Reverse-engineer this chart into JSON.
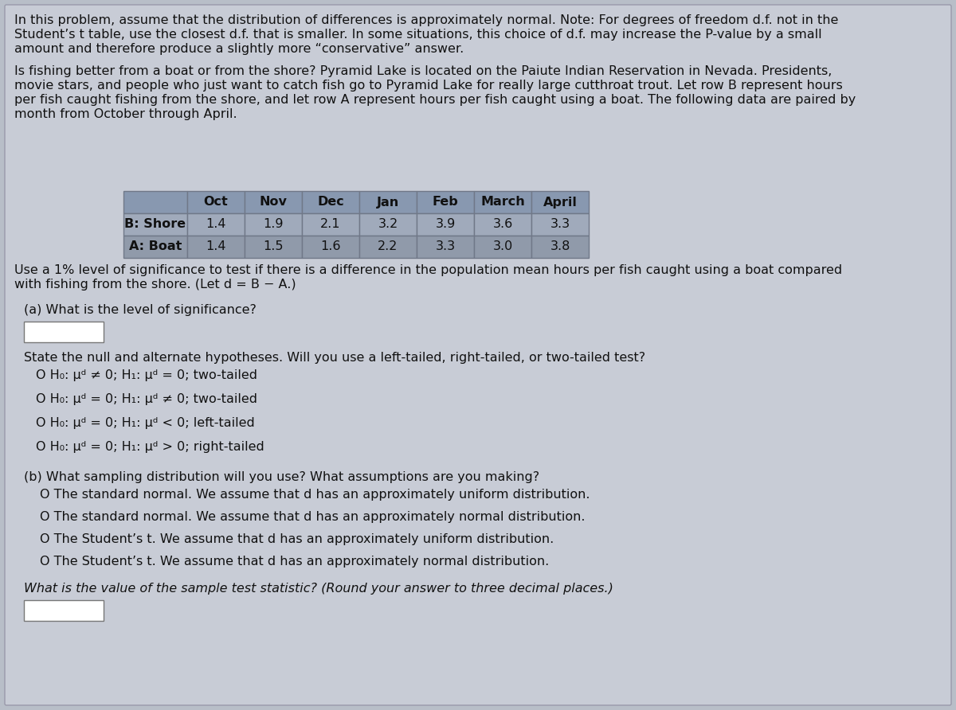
{
  "bg_color": "#b8bec8",
  "panel_color": "#c8ccd6",
  "text_color": "#111111",
  "table_header_bg": "#8898b0",
  "table_row1_bg": "#a0aabb",
  "table_row2_bg": "#909aaa",
  "table_border_color": "#707888",
  "intro_text_line1": "In this problem, assume that the distribution of differences is approximately normal. Note: For degrees of freedom d.f. not in the",
  "intro_text_line2": "Student’s t table, use the closest d.f. that is smaller. In some situations, this choice of d.f. may increase the P-value by a small",
  "intro_text_line3": "amount and therefore produce a slightly more “conservative” answer.",
  "problem_line1": "Is fishing better from a boat or from the shore? Pyramid Lake is located on the Paiute Indian Reservation in Nevada. Presidents,",
  "problem_line2": "movie stars, and people who just want to catch fish go to Pyramid Lake for really large cutthroat trout. Let row B represent hours",
  "problem_line3": "per fish caught fishing from the shore, and let row A represent hours per fish caught using a boat. The following data are paired by",
  "problem_line4": "month from October through April.",
  "table_headers": [
    "Oct",
    "Nov",
    "Dec",
    "Jan",
    "Feb",
    "March",
    "April"
  ],
  "table_row1_label": "B: Shore",
  "table_row1_values": [
    "1.4",
    "1.9",
    "2.1",
    "3.2",
    "3.9",
    "3.6",
    "3.3"
  ],
  "table_row2_label": "A: Boat",
  "table_row2_values": [
    "1.4",
    "1.5",
    "1.6",
    "2.2",
    "3.3",
    "3.0",
    "3.8"
  ],
  "sig_line1": "Use a 1% level of significance to test if there is a difference in the population mean hours per fish caught using a boat compared",
  "sig_line2": "with fishing from the shore. (Let d = B − A.)",
  "part_a_label": "(a) What is the level of significance?",
  "state_text": "State the null and alternate hypotheses. Will you use a left-tailed, right-tailed, or two-tailed test?",
  "hyp1": "O H₀: μᵈ ≠ 0; H₁: μᵈ = 0; two-tailed",
  "hyp2": "O H₀: μᵈ = 0; H₁: μᵈ ≠ 0; two-tailed",
  "hyp3": "O H₀: μᵈ = 0; H₁: μᵈ < 0; left-tailed",
  "hyp4": "O H₀: μᵈ = 0; H₁: μᵈ > 0; right-tailed",
  "part_b_label": "(b) What sampling distribution will you use? What assumptions are you making?",
  "samp1": "O The standard normal. We assume that d has an approximately uniform distribution.",
  "samp2": "O The standard normal. We assume that d has an approximately normal distribution.",
  "samp3": "O The Student’s t. We assume that d has an approximately uniform distribution.",
  "samp4": "O The Student’s t. We assume that d has an approximately normal distribution.",
  "test_stat_text": "What is the value of the sample test statistic? (Round your answer to three decimal places.)"
}
